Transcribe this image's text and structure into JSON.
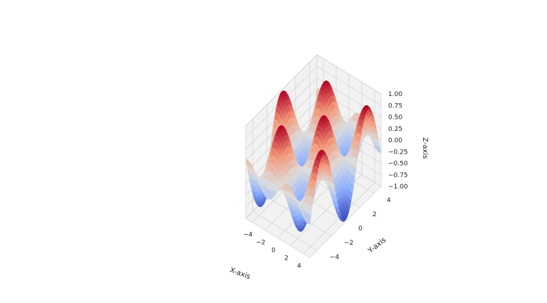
{
  "chart_data": {
    "type": "surface3d",
    "title": "",
    "xlabel": "X-axis",
    "ylabel": "Y-axis",
    "zlabel": "Z-axis",
    "function": "sin(x)*cos(y)",
    "colormap": "coolwarm",
    "xlim": [
      -5,
      5
    ],
    "ylim": [
      -5,
      5
    ],
    "zlim": [
      -1,
      1
    ],
    "xticks": [
      "−4",
      "−2",
      "0",
      "2",
      "4"
    ],
    "xtick_values": [
      -4,
      -2,
      0,
      2,
      4
    ],
    "yticks": [
      "−4",
      "−2",
      "0",
      "2",
      "4"
    ],
    "ytick_values": [
      -4,
      -2,
      0,
      2,
      4
    ],
    "zticks": [
      "−1.00",
      "−0.75",
      "−0.50",
      "−0.25",
      "0.00",
      "0.25",
      "0.50",
      "0.75",
      "1.00"
    ],
    "ztick_values": [
      -1,
      -0.75,
      -0.5,
      -0.25,
      0,
      0.25,
      0.5,
      0.75,
      1
    ],
    "grid": true,
    "colors": {
      "low": "#3b4cc0",
      "mid": "#dddddd",
      "high": "#b40426",
      "pane": "#f2f2f2",
      "pane_edge": "#d6d6d6",
      "grid": "#d0d0d0"
    }
  }
}
